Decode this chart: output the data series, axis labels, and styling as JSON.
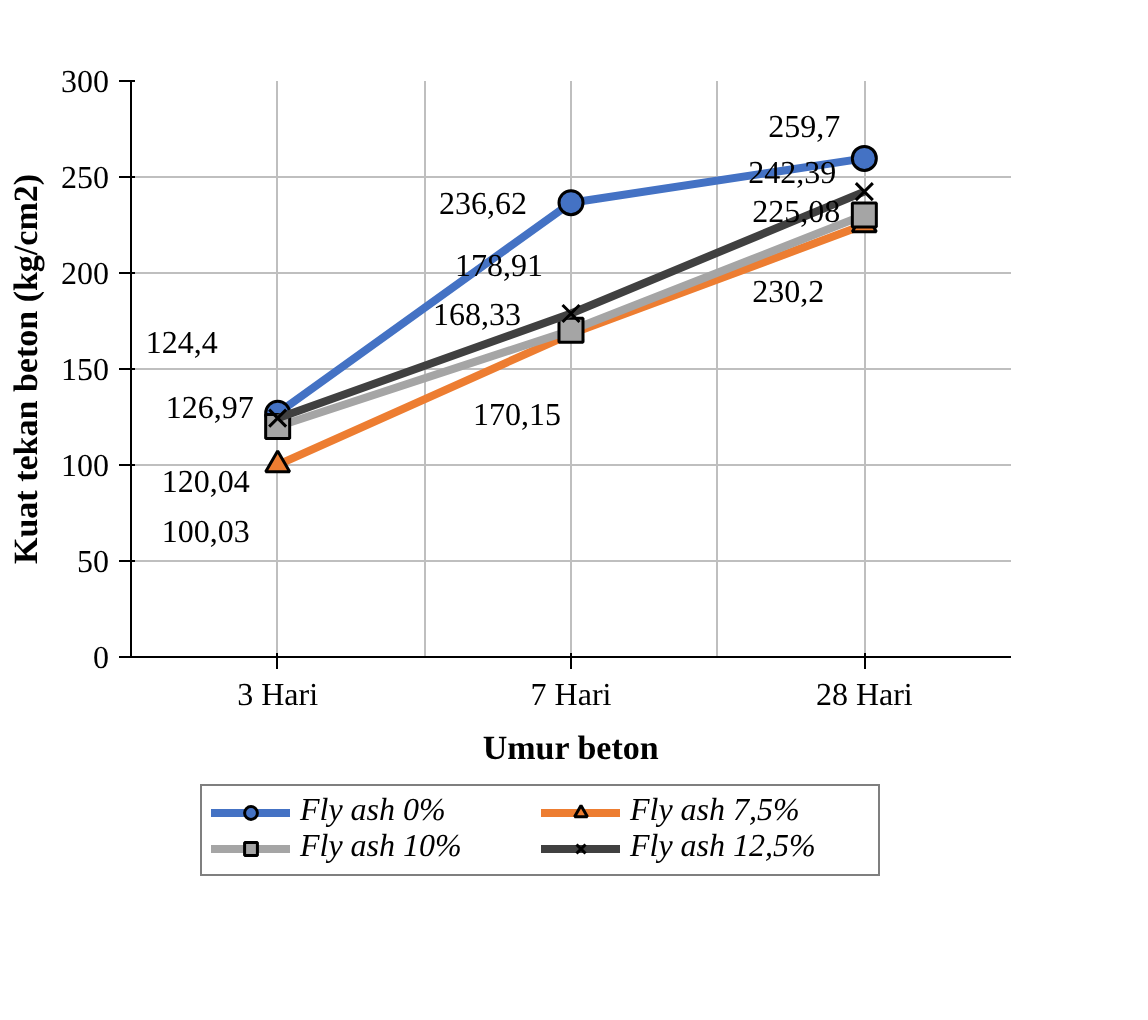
{
  "chart_data": {
    "type": "line",
    "xlabel": "Umur beton",
    "ylabel": "Kuat tekan beton (kg/cm2)",
    "categories": [
      "3 Hari",
      "7 Hari",
      "28 Hari"
    ],
    "series": [
      {
        "name": "Fly ash 0%",
        "color": "#4472c4",
        "marker": "circle",
        "values": [
          126.97,
          236.62,
          259.7
        ],
        "value_labels": [
          "126,97",
          "236,62",
          "259,7"
        ]
      },
      {
        "name": "Fly ash 7,5%",
        "color": "#ed7d31",
        "marker": "triangle",
        "values": [
          100.03,
          168.33,
          225.08
        ],
        "value_labels": [
          "100,03",
          "168,33",
          "225,08"
        ]
      },
      {
        "name": "Fly ash 10%",
        "color": "#a5a5a5",
        "marker": "square",
        "values": [
          120.04,
          170.15,
          230.2
        ],
        "value_labels": [
          "120,04",
          "170,15",
          "230,2"
        ]
      },
      {
        "name": "Fly ash 12,5%",
        "color": "#404040",
        "marker": "cross",
        "values": [
          124.4,
          178.91,
          242.39
        ],
        "value_labels": [
          "124,4",
          "178,91",
          "242,39"
        ]
      }
    ],
    "ylim": [
      0,
      300
    ],
    "yticks": [
      0,
      50,
      100,
      150,
      200,
      250,
      300
    ],
    "grid": true,
    "legend": "bottom",
    "line_style": "solid"
  }
}
